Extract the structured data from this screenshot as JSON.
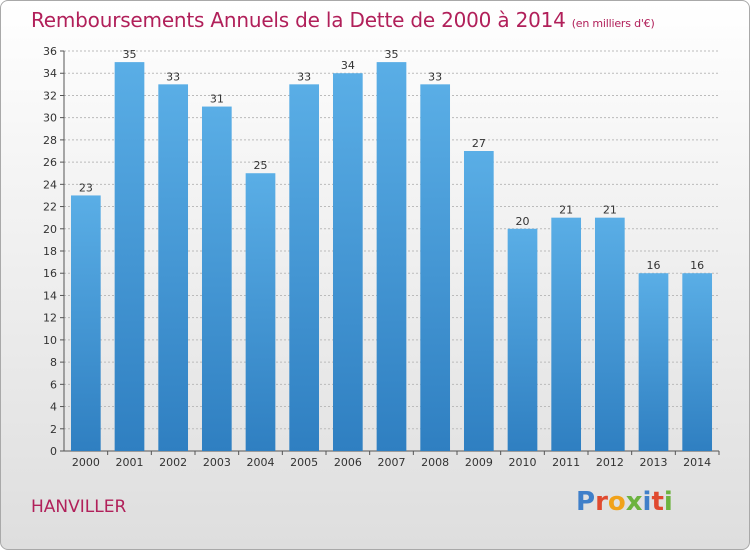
{
  "header": {
    "title": "Remboursements Annuels de la Dette de 2000 à 2014",
    "subtitle": "(en milliers d'€)"
  },
  "footer": {
    "commune": "HANVILLER",
    "logo_text": "Proxiti"
  },
  "colors": {
    "title": "#b1205a",
    "bar_top": "#5aaee6",
    "bar_bottom": "#2f7fc1",
    "axis": "#555555",
    "grid": "#bbbbbb",
    "logo": [
      "#3f7fc9",
      "#e04a2f",
      "#f1a21a",
      "#6cb33f",
      "#3f7fc9",
      "#e04a2f",
      "#6cb33f"
    ]
  },
  "chart_data": {
    "type": "bar",
    "categories": [
      "2000",
      "2001",
      "2002",
      "2003",
      "2004",
      "2005",
      "2006",
      "2007",
      "2008",
      "2009",
      "2010",
      "2011",
      "2012",
      "2013",
      "2014"
    ],
    "values": [
      23,
      35,
      33,
      31,
      25,
      33,
      34,
      35,
      33,
      27,
      20,
      21,
      21,
      16,
      16
    ],
    "title": "Remboursements Annuels de la Dette de 2000 à 2014",
    "subtitle": "(en milliers d'€)",
    "xlabel": "",
    "ylabel": "",
    "ylim": [
      0,
      36
    ],
    "ytick_step": 2,
    "grid": true,
    "data_labels": true
  }
}
